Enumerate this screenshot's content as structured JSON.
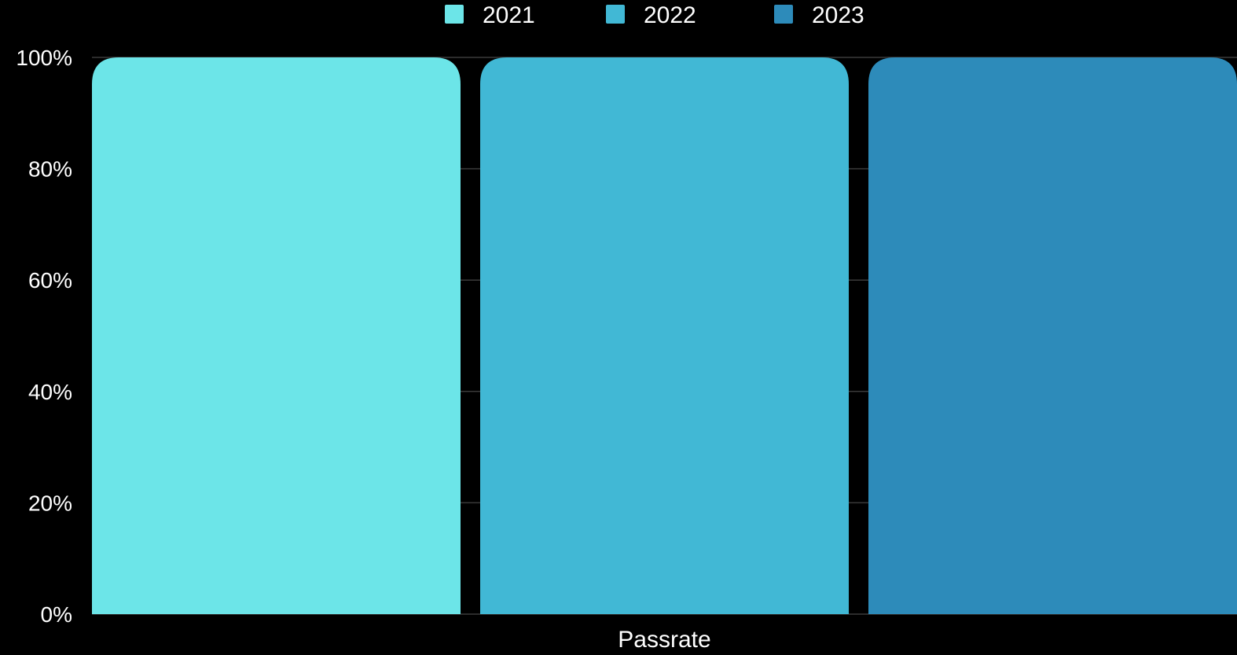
{
  "chart_data": {
    "type": "bar",
    "categories": [
      "Passrate"
    ],
    "series": [
      {
        "name": "2021",
        "values": [
          100
        ],
        "color": "#6ce5e8"
      },
      {
        "name": "2022",
        "values": [
          100
        ],
        "color": "#41b8d5"
      },
      {
        "name": "2023",
        "values": [
          100
        ],
        "color": "#2d8bba"
      }
    ],
    "y_ticks": [
      "0%",
      "20%",
      "40%",
      "60%",
      "80%",
      "100%"
    ],
    "ylim": [
      0,
      100
    ],
    "grid": true,
    "legend_position": "top-center",
    "title": "",
    "xlabel": "",
    "ylabel": ""
  },
  "colors": {
    "background": "#000000",
    "text": "#ffffff",
    "grid": "#3a3a3a"
  }
}
